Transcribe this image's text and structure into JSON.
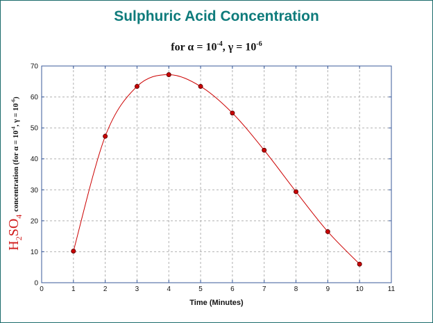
{
  "chart_data": {
    "type": "line",
    "title": "Sulphuric Acid Concentration",
    "subtitle_prefix": "for",
    "subtitle_alpha": "α = 10",
    "subtitle_alpha_exp": "-4",
    "subtitle_sep": ",",
    "subtitle_gamma": "γ = 10",
    "subtitle_gamma_exp": "-6",
    "xlabel": "Time (Minutes)",
    "ylabel_chem_a": "H",
    "ylabel_chem_sub1": "2",
    "ylabel_chem_b": "SO",
    "ylabel_chem_sub2": "4",
    "ylabel_text_a": "concentration  (for α = 10",
    "ylabel_exp1": "-4",
    "ylabel_text_b": ", γ = 10",
    "ylabel_exp2": "-6",
    "ylabel_text_c": ")",
    "xlim": [
      0,
      11
    ],
    "ylim": [
      0,
      70
    ],
    "xticks": [
      0,
      1,
      2,
      3,
      4,
      5,
      6,
      7,
      8,
      9,
      10,
      11
    ],
    "yticks": [
      0,
      10,
      20,
      30,
      40,
      50,
      60,
      70
    ],
    "grid": true,
    "x": [
      1,
      2,
      3,
      4,
      5,
      6,
      7,
      8,
      9,
      10
    ],
    "y": [
      10.2,
      47.3,
      63.4,
      67.2,
      63.4,
      54.8,
      42.8,
      29.4,
      16.5,
      6.0
    ],
    "colors": {
      "line": "#cc0000",
      "marker": "#cc0000",
      "marker_edge": "#660000",
      "axis": "#3a5a9a",
      "grid": "#b0b0b0",
      "title": "#0e7b7b"
    }
  }
}
